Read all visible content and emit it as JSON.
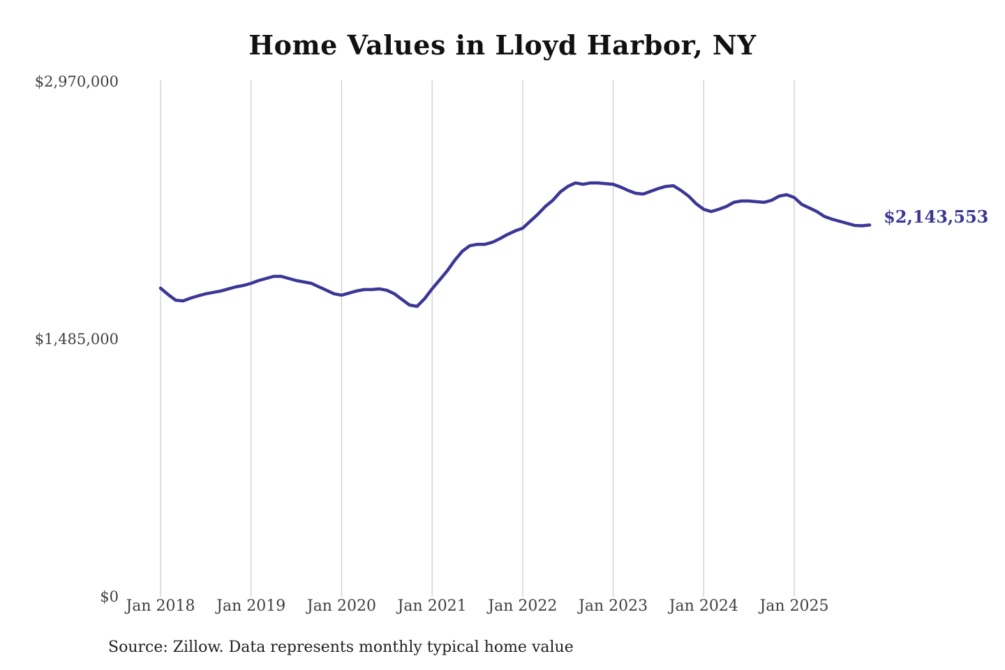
{
  "title": "Home Values in Lloyd Harbor, NY",
  "source_note": "Source: Zillow. Data represents monthly typical home value",
  "end_label": "$2,143,553",
  "colors": {
    "line": "#3c3796",
    "grid": "#cccccc",
    "axis_text": "#3f3f3f",
    "title_text": "#111111",
    "background": "#ffffff"
  },
  "chart_data": {
    "type": "line",
    "title": "Home Values in Lloyd Harbor, NY",
    "xlabel": "",
    "ylabel": "",
    "ylim": [
      0,
      2970000
    ],
    "grid": "vertical-only",
    "legend": "none",
    "frequency": "monthly",
    "x_start_month": "2018-01",
    "x_end_month": "2025-11",
    "y_ticks": [
      {
        "label": "$0",
        "value": 0
      },
      {
        "label": "$1,485,000",
        "value": 1485000
      },
      {
        "label": "$2,970,000",
        "value": 2970000
      }
    ],
    "x_ticks": [
      {
        "label": "Jan 2018"
      },
      {
        "label": "Jan 2019"
      },
      {
        "label": "Jan 2020"
      },
      {
        "label": "Jan 2021"
      },
      {
        "label": "Jan 2022"
      },
      {
        "label": "Jan 2023"
      },
      {
        "label": "Jan 2024"
      },
      {
        "label": "Jan 2025"
      }
    ],
    "end_value": 2143553,
    "series": [
      {
        "name": "Monthly typical home value",
        "values": [
          1779000,
          1743000,
          1710000,
          1706000,
          1722000,
          1735000,
          1747000,
          1755000,
          1763000,
          1775000,
          1787000,
          1795000,
          1807000,
          1823000,
          1835000,
          1847000,
          1847000,
          1835000,
          1823000,
          1815000,
          1807000,
          1787000,
          1767000,
          1747000,
          1739000,
          1751000,
          1763000,
          1771000,
          1771000,
          1775000,
          1767000,
          1747000,
          1714000,
          1682000,
          1674000,
          1718000,
          1775000,
          1827000,
          1879000,
          1940000,
          1992000,
          2024000,
          2032000,
          2032000,
          2044000,
          2065000,
          2089000,
          2109000,
          2125000,
          2165000,
          2205000,
          2250000,
          2286000,
          2334000,
          2366000,
          2386000,
          2378000,
          2386000,
          2386000,
          2382000,
          2378000,
          2362000,
          2342000,
          2326000,
          2322000,
          2338000,
          2354000,
          2366000,
          2370000,
          2342000,
          2310000,
          2266000,
          2234000,
          2221000,
          2234000,
          2250000,
          2274000,
          2282000,
          2282000,
          2278000,
          2274000,
          2286000,
          2310000,
          2318000,
          2302000,
          2262000,
          2242000,
          2221000,
          2193000,
          2177000,
          2165000,
          2153000,
          2141000,
          2139000,
          2143553
        ]
      }
    ]
  }
}
